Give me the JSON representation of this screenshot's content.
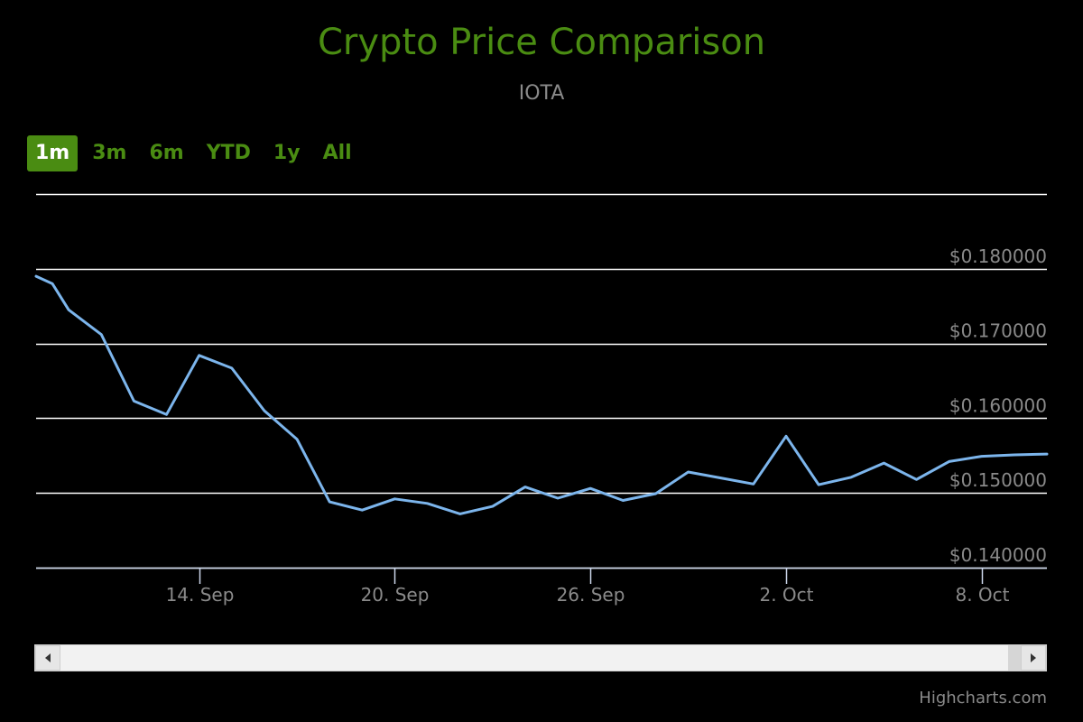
{
  "chart_data": {
    "type": "line",
    "title": "Crypto Price Comparison",
    "subtitle": "IOTA",
    "colors": {
      "background": "#000000",
      "title": "#4a8c12",
      "line": "#7cb5ec",
      "grid": "#ffffff",
      "label": "#8a8a8a"
    },
    "ylim": [
      0.14,
      0.19
    ],
    "yticks": [
      0.14,
      0.15,
      0.16,
      0.17,
      0.18
    ],
    "ytick_labels": [
      "$0.140000",
      "$0.150000",
      "$0.160000",
      "$0.170000",
      "$0.180000"
    ],
    "xlim": [
      "2017-09-09",
      "2017-10-10"
    ],
    "xticks": [
      "2017-09-14",
      "2017-09-20",
      "2017-09-26",
      "2017-10-02",
      "2017-10-08"
    ],
    "xtick_labels": [
      "14. Sep",
      "20. Sep",
      "26. Sep",
      "2. Oct",
      "8. Oct"
    ],
    "grid": true,
    "series": [
      {
        "x": [
          "2017-09-09",
          "2017-09-09T12:00",
          "2017-09-10",
          "2017-09-11",
          "2017-09-12",
          "2017-09-13",
          "2017-09-14",
          "2017-09-15",
          "2017-09-16",
          "2017-09-17",
          "2017-09-18",
          "2017-09-19",
          "2017-09-20",
          "2017-09-21",
          "2017-09-22",
          "2017-09-23",
          "2017-09-24",
          "2017-09-25",
          "2017-09-26",
          "2017-09-27",
          "2017-09-28",
          "2017-09-29",
          "2017-09-30",
          "2017-10-01",
          "2017-10-02",
          "2017-10-03",
          "2017-10-04",
          "2017-10-05",
          "2017-10-06",
          "2017-10-07",
          "2017-10-08",
          "2017-10-09",
          "2017-10-10"
        ],
        "values": [
          0.179,
          0.178,
          0.1745,
          0.1712,
          0.1623,
          0.1605,
          0.1684,
          0.1667,
          0.161,
          0.1572,
          0.1488,
          0.1477,
          0.1492,
          0.1486,
          0.1472,
          0.1482,
          0.1508,
          0.1493,
          0.1506,
          0.149,
          0.1499,
          0.1528,
          0.152,
          0.1512,
          0.1576,
          0.1511,
          0.1521,
          0.154,
          0.1518,
          0.1542,
          0.1549,
          0.1551,
          0.1552
        ]
      }
    ]
  },
  "range_selector": {
    "buttons": [
      {
        "label": "1m",
        "active": true
      },
      {
        "label": "3m",
        "active": false
      },
      {
        "label": "6m",
        "active": false
      },
      {
        "label": "YTD",
        "active": false
      },
      {
        "label": "1y",
        "active": false
      },
      {
        "label": "All",
        "active": false
      }
    ]
  },
  "credits": "Highcharts.com"
}
